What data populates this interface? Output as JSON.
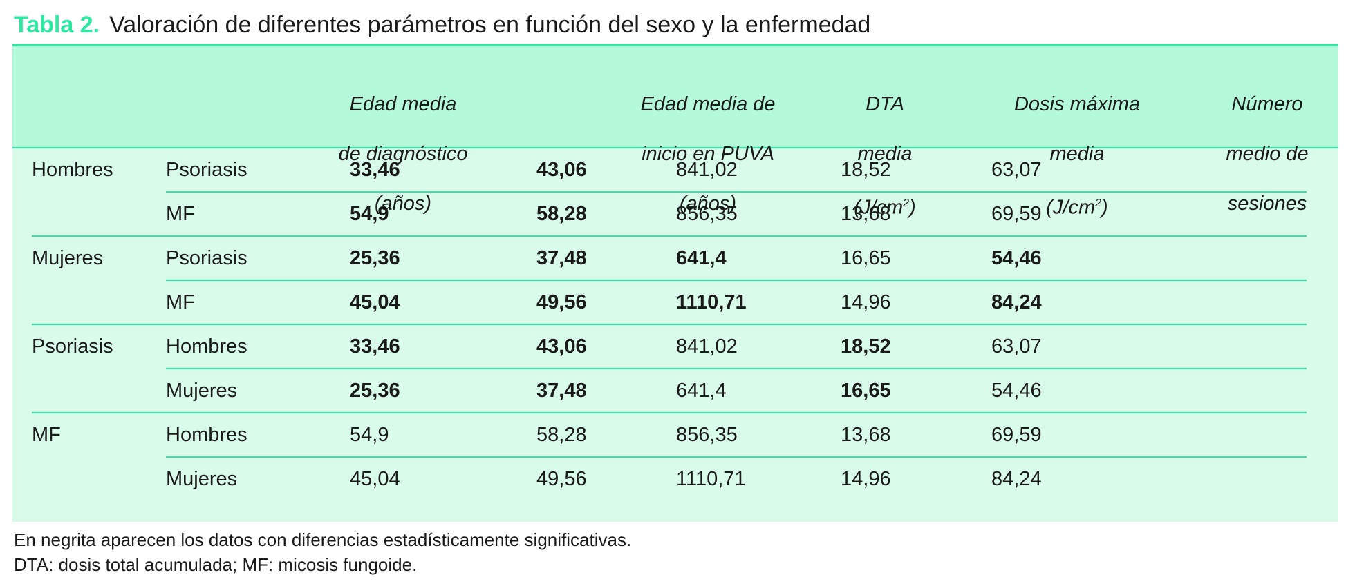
{
  "title": {
    "label": "Tabla 2.",
    "text": "Valoración de diferentes parámetros en función del sexo y la enfermedad"
  },
  "table": {
    "headers": [
      {
        "line1": "Edad media",
        "line2": "de diagnóstico",
        "line3": "(años)"
      },
      {
        "line1": "Edad media de",
        "line2": "inicio en PUVA",
        "line3": "(años)"
      },
      {
        "line1": "DTA",
        "line2": "media",
        "line3": "(J/cm",
        "sup": "2",
        "after": ")"
      },
      {
        "line1": "Dosis máxima",
        "line2": "media",
        "line3": "(J/cm",
        "sup": "2",
        "after": ")"
      },
      {
        "line1": "Número",
        "line2": "medio de",
        "line3": "sesiones"
      }
    ],
    "rows": [
      {
        "group": "Hombres",
        "sub": "Psoriasis",
        "vals": [
          "33,46",
          "43,06",
          "841,02",
          "18,52",
          "63,07"
        ],
        "bold": [
          true,
          true,
          false,
          false,
          false
        ]
      },
      {
        "group": "",
        "sub": "MF",
        "vals": [
          "54,9",
          "58,28",
          "856,35",
          "13,68",
          "69,59"
        ],
        "bold": [
          true,
          true,
          false,
          false,
          false
        ]
      },
      {
        "group": "Mujeres",
        "sub": "Psoriasis",
        "vals": [
          "25,36",
          "37,48",
          "641,4",
          "16,65",
          "54,46"
        ],
        "bold": [
          true,
          true,
          true,
          false,
          true
        ]
      },
      {
        "group": "",
        "sub": "MF",
        "vals": [
          "45,04",
          "49,56",
          "1110,71",
          "14,96",
          "84,24"
        ],
        "bold": [
          true,
          true,
          true,
          false,
          true
        ]
      },
      {
        "group": "Psoriasis",
        "sub": "Hombres",
        "vals": [
          "33,46",
          "43,06",
          "841,02",
          "18,52",
          "63,07"
        ],
        "bold": [
          true,
          true,
          false,
          true,
          false
        ]
      },
      {
        "group": "",
        "sub": "Mujeres",
        "vals": [
          "25,36",
          "37,48",
          "641,4",
          "16,65",
          "54,46"
        ],
        "bold": [
          true,
          true,
          false,
          true,
          false
        ]
      },
      {
        "group": "MF",
        "sub": "Hombres",
        "vals": [
          "54,9",
          "58,28",
          "856,35",
          "13,68",
          "69,59"
        ],
        "bold": [
          false,
          false,
          false,
          false,
          false
        ]
      },
      {
        "group": "",
        "sub": "Mujeres",
        "vals": [
          "45,04",
          "49,56",
          "1110,71",
          "14,96",
          "84,24"
        ],
        "bold": [
          false,
          false,
          false,
          false,
          false
        ]
      }
    ]
  },
  "footnotes": {
    "line1": "En negrita aparecen los datos con diferencias estadísticamente significativas.",
    "line2": "DTA: dosis total acumulada; MF: micosis fungoide."
  }
}
